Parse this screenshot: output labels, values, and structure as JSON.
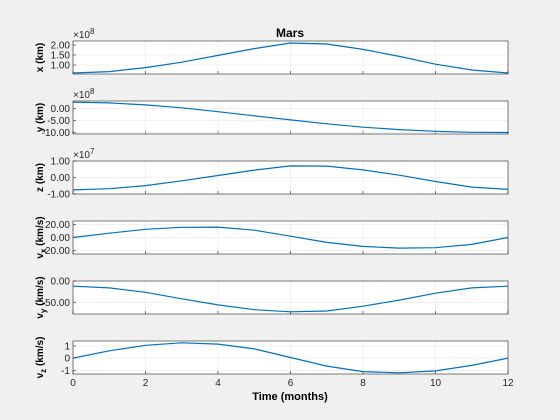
{
  "figure": {
    "title": "Mars",
    "xlabel": "Time (months)",
    "xlim": [
      0,
      12
    ],
    "xticks": [
      "0",
      "2",
      "4",
      "6",
      "8",
      "10",
      "12"
    ],
    "line_color": "#0072bd"
  },
  "chart_data": [
    {
      "type": "line",
      "ylabel": "x (km)",
      "exponent_label": "×10",
      "exponent_power": "8",
      "ylim": [
        0.55,
        2.2
      ],
      "yticks": [
        1.0,
        1.5,
        2.0
      ],
      "ytick_labels": [
        "1.00",
        "1.50",
        "2.00"
      ],
      "x": [
        0,
        1,
        2,
        3,
        4,
        5,
        6,
        7,
        8,
        9,
        10,
        11,
        12
      ],
      "y": [
        0.6,
        0.67,
        0.87,
        1.14,
        1.48,
        1.82,
        2.1,
        2.05,
        1.78,
        1.43,
        1.04,
        0.75,
        0.6
      ]
    },
    {
      "type": "line",
      "ylabel": "y (km)",
      "exponent_label": "×10",
      "exponent_power": "8",
      "ylim": [
        -10.6,
        3.0
      ],
      "yticks": [
        -10,
        -5,
        0
      ],
      "ytick_labels": [
        "-10.00",
        "-5.00",
        "0.00"
      ],
      "x": [
        0,
        1,
        2,
        3,
        4,
        5,
        6,
        7,
        8,
        9,
        10,
        11,
        12
      ],
      "y": [
        2.5,
        2.2,
        1.4,
        0.2,
        -1.4,
        -3.1,
        -4.8,
        -6.4,
        -7.8,
        -8.8,
        -9.5,
        -9.9,
        -10.0
      ]
    },
    {
      "type": "line",
      "ylabel": "z (km)",
      "exponent_label": "×10",
      "exponent_power": "7",
      "ylim": [
        -1.0,
        1.0
      ],
      "yticks": [
        -1.0,
        0.0,
        1.0
      ],
      "ytick_labels": [
        "-1.00",
        "0.00",
        "1.00"
      ],
      "x": [
        0,
        1,
        2,
        3,
        4,
        5,
        6,
        7,
        8,
        9,
        10,
        11,
        12
      ],
      "y": [
        -0.75,
        -0.68,
        -0.49,
        -0.2,
        0.12,
        0.45,
        0.7,
        0.69,
        0.46,
        0.14,
        -0.24,
        -0.58,
        -0.72
      ]
    },
    {
      "type": "line",
      "ylabel": "v",
      "ylabel_sub": "x",
      "ylabel_unit": " (km/s)",
      "ylim": [
        -25,
        25
      ],
      "yticks": [
        -20,
        0,
        20
      ],
      "ytick_labels": [
        "-20.00",
        "0.00",
        "20.00"
      ],
      "x": [
        0,
        1,
        2,
        3,
        4,
        5,
        6,
        7,
        8,
        9,
        10,
        11,
        12
      ],
      "y": [
        0,
        6.5,
        12.5,
        15.5,
        15.8,
        11,
        2,
        -7.5,
        -13.5,
        -16,
        -15.5,
        -10.5,
        0
      ]
    },
    {
      "type": "line",
      "ylabel": "v",
      "ylabel_sub": "y",
      "ylabel_unit": " (km/s)",
      "ylim": [
        -76,
        0
      ],
      "yticks": [
        -50,
        0
      ],
      "ytick_labels": [
        "-50.00",
        "0.00"
      ],
      "x": [
        0,
        1,
        2,
        3,
        4,
        5,
        6,
        7,
        8,
        9,
        10,
        11,
        12
      ],
      "y": [
        -12,
        -16,
        -26,
        -41,
        -55,
        -66,
        -71,
        -69,
        -58,
        -44,
        -28,
        -16,
        -12
      ]
    },
    {
      "type": "line",
      "ylabel": "v",
      "ylabel_sub": "z",
      "ylabel_unit": " (km/s)",
      "ylim": [
        -1.3,
        1.4
      ],
      "yticks": [
        -1,
        0,
        1
      ],
      "ytick_labels": [
        "-1",
        "0",
        "1"
      ],
      "x": [
        0,
        1,
        2,
        3,
        4,
        5,
        6,
        7,
        8,
        9,
        10,
        11,
        12
      ],
      "y": [
        0,
        0.6,
        1.05,
        1.25,
        1.15,
        0.75,
        0.05,
        -0.65,
        -1.1,
        -1.2,
        -1.05,
        -0.6,
        0
      ]
    }
  ]
}
